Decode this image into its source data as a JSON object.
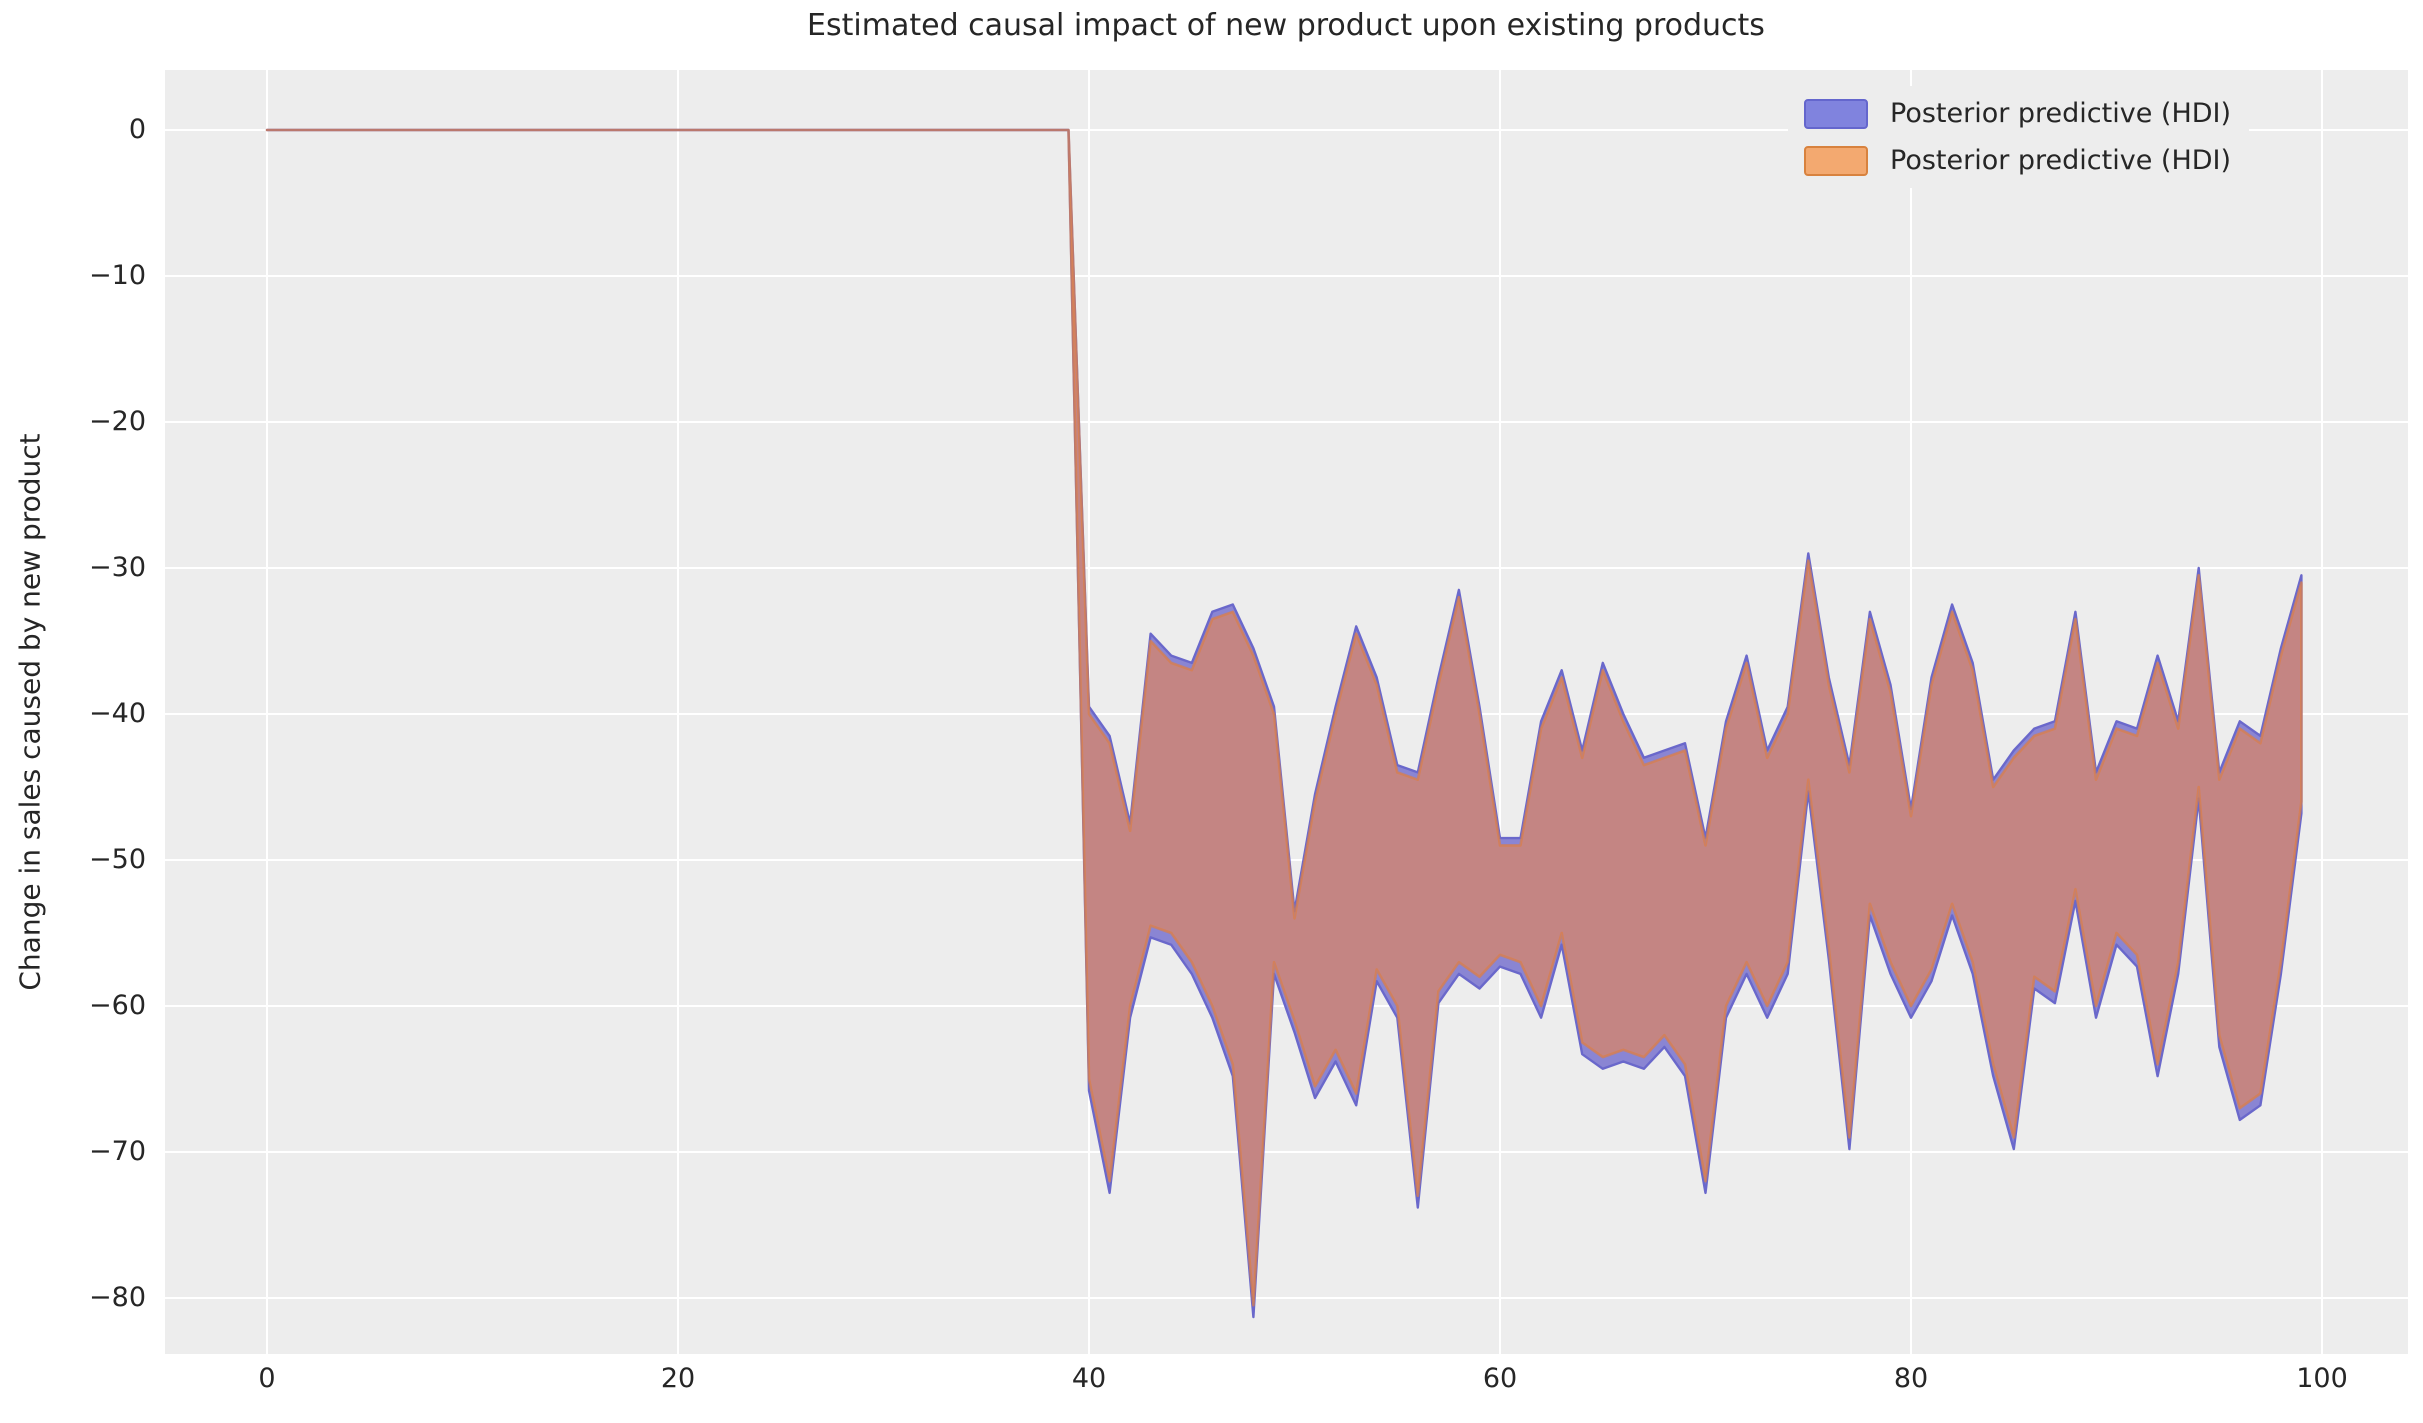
{
  "title": "Estimated causal impact of new product upon existing products",
  "y_axis_label": "Change in sales caused by new product",
  "legend": {
    "items": [
      {
        "label": "Posterior predictive (HDI)",
        "fill": "#8083de",
        "border": "#6466cd"
      },
      {
        "label": "Posterior predictive (HDI)",
        "fill": "#f3a970",
        "border": "#d8823e"
      }
    ]
  },
  "axes": {
    "x_ticks": [
      {
        "value": 0,
        "label": "0"
      },
      {
        "value": 20,
        "label": "20"
      },
      {
        "value": 40,
        "label": "40"
      },
      {
        "value": 60,
        "label": "60"
      },
      {
        "value": 80,
        "label": "80"
      },
      {
        "value": 100,
        "label": "100"
      }
    ],
    "y_ticks": [
      {
        "value": 0,
        "label": "0"
      },
      {
        "value": -10,
        "label": "−10"
      },
      {
        "value": -20,
        "label": "−20"
      },
      {
        "value": -30,
        "label": "−30"
      },
      {
        "value": -40,
        "label": "−40"
      },
      {
        "value": -50,
        "label": "−50"
      },
      {
        "value": -60,
        "label": "−60"
      },
      {
        "value": -70,
        "label": "−70"
      },
      {
        "value": -80,
        "label": "−80"
      }
    ]
  },
  "colors": {
    "figure_background": "#ffffff",
    "axes_background": "#ededed",
    "gridline": "#ffffff",
    "band_fill_overlap": "#c48583",
    "band_edge_orange": "#d97e4a",
    "band_fill_blue": "#8a85d3",
    "band_edge_blue": "#6a68cb",
    "text": "#262626"
  },
  "chart_data": {
    "type": "area",
    "description": "Two nearly identical posterior-predictive HDI bands (blue and orange) that overlap to a rosy brown; zero causal impact until x=39, then a sustained drop of roughly -30 to -80 from x=40 onward.",
    "x_range": [
      0,
      99
    ],
    "x_step": 1,
    "xlim": [
      -5,
      104.2
    ],
    "ylim": [
      -83.8,
      4.1
    ],
    "grid": true,
    "legend_position": "upper right",
    "pre_period": {
      "x_start": 0,
      "x_end": 39,
      "upper": 0,
      "lower": 0
    },
    "series": [
      {
        "name": "Posterior predictive (HDI) blue",
        "upper": [
          0,
          0,
          0,
          0,
          0,
          0,
          0,
          0,
          0,
          0,
          0,
          0,
          0,
          0,
          0,
          0,
          0,
          0,
          0,
          0,
          0,
          0,
          0,
          0,
          0,
          0,
          0,
          0,
          0,
          0,
          0,
          0,
          0,
          0,
          0,
          0,
          0,
          0,
          0,
          0,
          -39.5,
          -41.5,
          -47.5,
          -34.5,
          -36,
          -36.5,
          -33,
          -32.5,
          -35.5,
          -39.5,
          -53.5,
          -45.5,
          -39.5,
          -34,
          -37.5,
          -43.5,
          -44,
          -37.5,
          -31.5,
          -39.5,
          -48.5,
          -48.5,
          -40.5,
          -37,
          -42.5,
          -36.5,
          -40,
          -43,
          -42.5,
          -42,
          -48.5,
          -40.5,
          -36,
          -42.5,
          -39.5,
          -29,
          -37.5,
          -43.5,
          -33,
          -38,
          -46.5,
          -37.5,
          -32.5,
          -36.5,
          -44.5,
          -42.5,
          -41,
          -40.5,
          -33,
          -44,
          -40.5,
          -41,
          -36,
          -40.5,
          -30,
          -44,
          -40.5,
          -41.5,
          -35.5,
          -30.5
        ],
        "lower": [
          0,
          0,
          0,
          0,
          0,
          0,
          0,
          0,
          0,
          0,
          0,
          0,
          0,
          0,
          0,
          0,
          0,
          0,
          0,
          0,
          0,
          0,
          0,
          0,
          0,
          0,
          0,
          0,
          0,
          0,
          0,
          0,
          0,
          0,
          0,
          0,
          0,
          0,
          0,
          0,
          -65.8,
          -72.8,
          -60.8,
          -55.3,
          -55.8,
          -57.8,
          -60.8,
          -64.8,
          -81.3,
          -57.8,
          -61.8,
          -66.3,
          -63.8,
          -66.8,
          -58.3,
          -60.8,
          -73.8,
          -59.8,
          -57.8,
          -58.8,
          -57.3,
          -57.8,
          -60.8,
          -55.8,
          -63.3,
          -64.3,
          -63.8,
          -64.3,
          -62.8,
          -64.8,
          -72.8,
          -60.8,
          -57.8,
          -60.8,
          -57.8,
          -45.3,
          -56.8,
          -69.8,
          -53.8,
          -57.8,
          -60.8,
          -58.3,
          -53.8,
          -57.8,
          -64.8,
          -69.8,
          -58.8,
          -59.8,
          -52.8,
          -60.8,
          -55.8,
          -57.3,
          -64.8,
          -57.8,
          -45.8,
          -62.8,
          -67.8,
          -66.8,
          -57.8,
          -46.8
        ]
      },
      {
        "name": "Posterior predictive (HDI) orange",
        "upper": [
          0,
          0,
          0,
          0,
          0,
          0,
          0,
          0,
          0,
          0,
          0,
          0,
          0,
          0,
          0,
          0,
          0,
          0,
          0,
          0,
          0,
          0,
          0,
          0,
          0,
          0,
          0,
          0,
          0,
          0,
          0,
          0,
          0,
          0,
          0,
          0,
          0,
          0,
          0,
          0,
          -40,
          -42,
          -48,
          -35,
          -36.5,
          -37,
          -33.5,
          -33,
          -36,
          -40,
          -54,
          -46,
          -40,
          -34.5,
          -38,
          -44,
          -44.5,
          -38,
          -32,
          -40,
          -49,
          -49,
          -41,
          -37.5,
          -43,
          -37,
          -40.5,
          -43.5,
          -43,
          -42.5,
          -49,
          -41,
          -36.5,
          -43,
          -40,
          -29.5,
          -38,
          -44,
          -33.5,
          -38.5,
          -47,
          -38,
          -33,
          -37,
          -45,
          -43,
          -41.5,
          -41,
          -33.5,
          -44.5,
          -41,
          -41.5,
          -36.5,
          -41,
          -30.5,
          -44.5,
          -41,
          -42,
          -36,
          -31
        ],
        "lower": [
          0,
          0,
          0,
          0,
          0,
          0,
          0,
          0,
          0,
          0,
          0,
          0,
          0,
          0,
          0,
          0,
          0,
          0,
          0,
          0,
          0,
          0,
          0,
          0,
          0,
          0,
          0,
          0,
          0,
          0,
          0,
          0,
          0,
          0,
          0,
          0,
          0,
          0,
          0,
          0,
          -65,
          -72,
          -60,
          -54.5,
          -55,
          -57,
          -60,
          -64,
          -80.5,
          -57,
          -61,
          -65.5,
          -63,
          -66,
          -57.5,
          -60,
          -73,
          -59,
          -57,
          -58,
          -56.5,
          -57,
          -60,
          -55,
          -62.5,
          -63.5,
          -63,
          -63.5,
          -62,
          -64,
          -72,
          -60,
          -57,
          -60,
          -57,
          -44.5,
          -56,
          -69,
          -53,
          -57,
          -60,
          -57.5,
          -53,
          -57,
          -64,
          -69,
          -58,
          -59,
          -52,
          -60,
          -55,
          -56.5,
          -64,
          -57,
          -45,
          -62,
          -67,
          -66,
          -57,
          -46
        ]
      }
    ]
  }
}
